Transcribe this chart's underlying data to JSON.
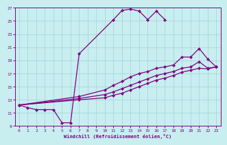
{
  "xlabel": "Windchill (Refroidissement éolien,°C)",
  "bg_color": "#c8eef0",
  "grid_color": "#9fd4d8",
  "line_color": "#800080",
  "xlim": [
    -0.5,
    23.5
  ],
  "ylim": [
    9,
    27
  ],
  "xticks": [
    0,
    1,
    2,
    3,
    4,
    5,
    6,
    7,
    8,
    9,
    10,
    11,
    12,
    13,
    14,
    15,
    16,
    17,
    18,
    19,
    20,
    21,
    22,
    23
  ],
  "yticks": [
    9,
    11,
    13,
    15,
    17,
    19,
    21,
    23,
    25,
    27
  ],
  "lines": [
    {
      "x": [
        0,
        1,
        2,
        3,
        4,
        5,
        6,
        7,
        11,
        12,
        13,
        14,
        15,
        16,
        17
      ],
      "y": [
        12.2,
        11.8,
        11.5,
        11.5,
        11.5,
        9.5,
        9.5,
        20.0,
        25.2,
        26.6,
        26.8,
        26.5,
        25.2,
        26.5,
        25.2
      ]
    },
    {
      "x": [
        0,
        7,
        10,
        11,
        12,
        13,
        14,
        15,
        16,
        17,
        18,
        19,
        20,
        21,
        22,
        23
      ],
      "y": [
        12.2,
        13.5,
        14.5,
        15.2,
        15.8,
        16.5,
        17.0,
        17.3,
        17.8,
        18.0,
        18.3,
        19.5,
        19.5,
        20.8,
        19.2,
        18.0
      ]
    },
    {
      "x": [
        0,
        7,
        10,
        11,
        12,
        13,
        14,
        15,
        16,
        17,
        18,
        19,
        20,
        21,
        22,
        23
      ],
      "y": [
        12.2,
        13.2,
        13.8,
        14.2,
        14.7,
        15.2,
        15.7,
        16.2,
        16.7,
        17.0,
        17.3,
        17.8,
        18.0,
        18.8,
        17.8,
        18.0
      ]
    },
    {
      "x": [
        0,
        7,
        10,
        11,
        12,
        13,
        14,
        15,
        16,
        17,
        18,
        19,
        20,
        21,
        22,
        23
      ],
      "y": [
        12.2,
        13.0,
        13.3,
        13.7,
        14.0,
        14.5,
        15.0,
        15.5,
        16.0,
        16.3,
        16.7,
        17.2,
        17.5,
        17.8,
        17.7,
        18.0
      ]
    }
  ]
}
